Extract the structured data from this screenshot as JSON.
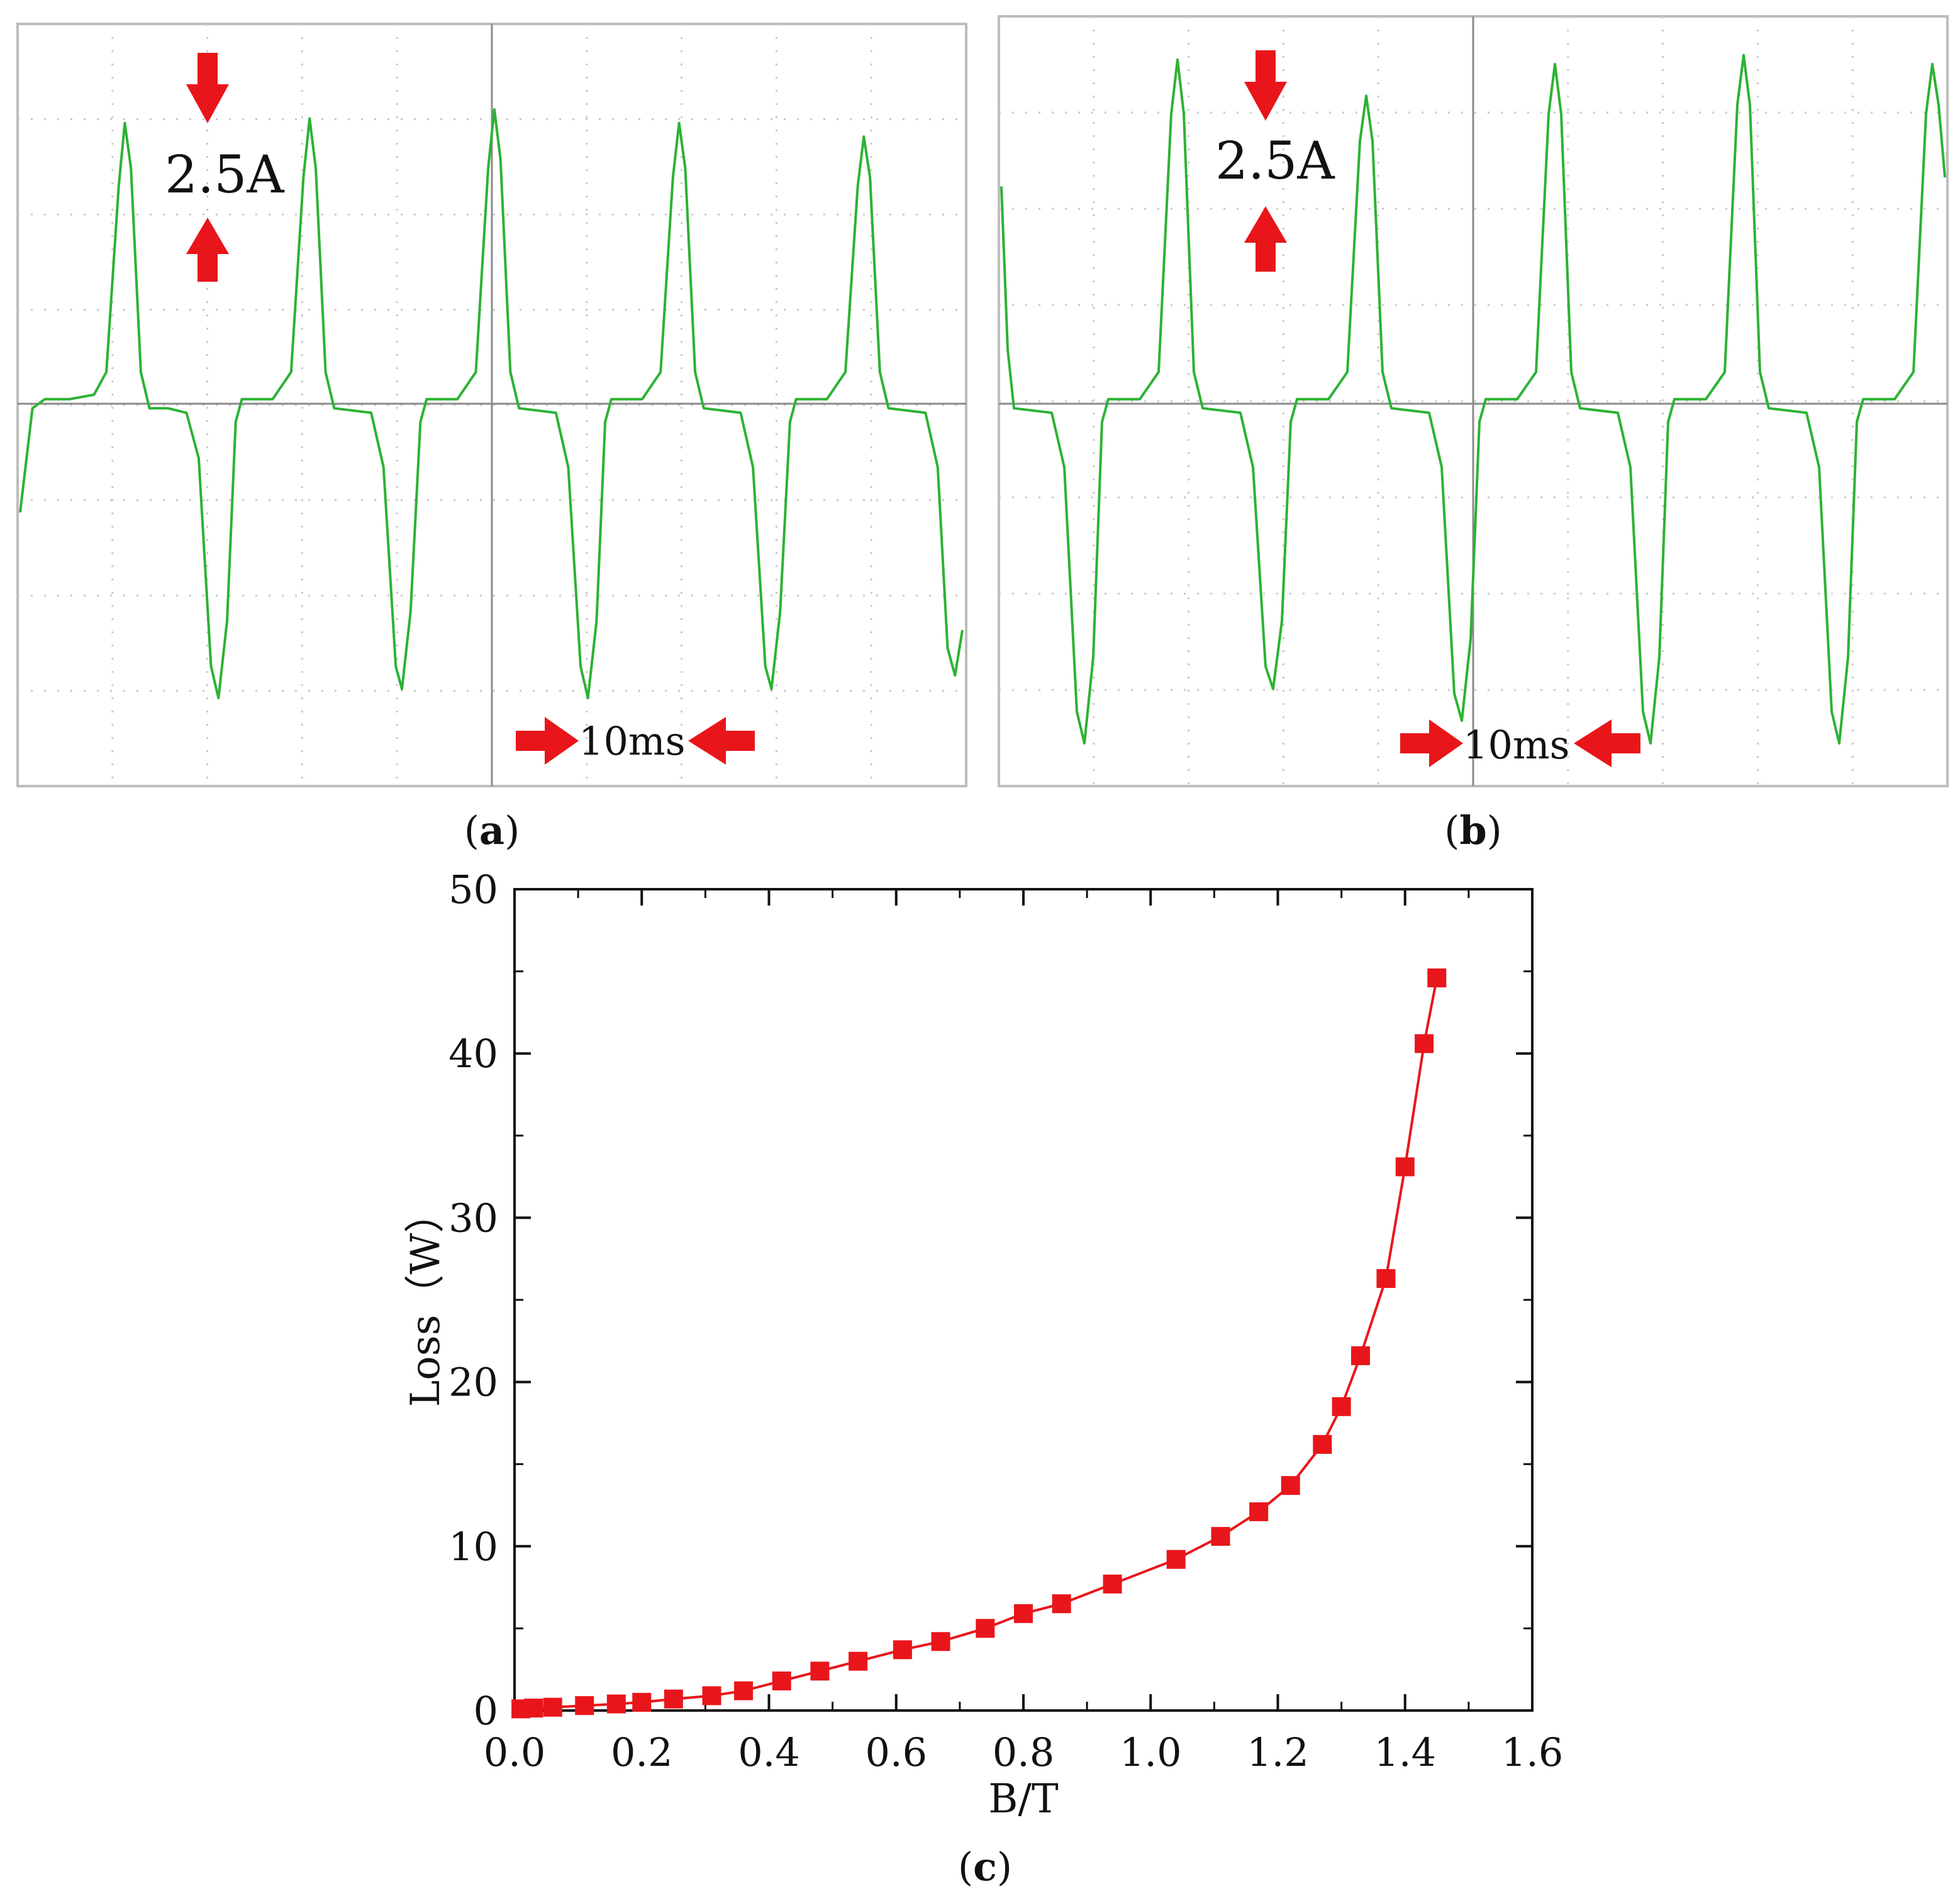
{
  "panels": {
    "a": {
      "label_open": "(",
      "label_letter": "a",
      "label_close": ")",
      "amplitude_label": "2.5A",
      "time_label": "10ms"
    },
    "b": {
      "label_open": "(",
      "label_letter": "b",
      "label_close": ")",
      "amplitude_label": "2.5A",
      "time_label": "10ms"
    },
    "c": {
      "label_open": "(",
      "label_letter": "c",
      "label_close": ")"
    }
  },
  "colors": {
    "trace": "#2cb233",
    "grid": "#c9c9c9",
    "axis": "#8a8a8a",
    "marker": "#e8161b",
    "arrow": "#e8161b",
    "frame": "#bdbdbd"
  },
  "chart_data": [
    {
      "type": "line",
      "description_panel": "a",
      "series": [
        {
          "values": [
            [
              0.0,
              -1.2
            ],
            [
              1.0,
              -0.05
            ],
            [
              2.0,
              0.05
            ],
            [
              4.0,
              0.05
            ],
            [
              6.0,
              0.1
            ],
            [
              7.0,
              0.35
            ],
            [
              8.0,
              2.4
            ],
            [
              8.5,
              3.1
            ],
            [
              9.0,
              2.6
            ],
            [
              9.8,
              0.35
            ],
            [
              10.5,
              -0.05
            ],
            [
              12.0,
              -0.05
            ],
            [
              13.5,
              -0.1
            ],
            [
              14.5,
              -0.6
            ],
            [
              15.5,
              -2.9
            ],
            [
              16.1,
              -3.25
            ],
            [
              16.8,
              -2.4
            ],
            [
              17.5,
              -0.2
            ],
            [
              18.0,
              0.05
            ],
            [
              20.5,
              0.05
            ],
            [
              22.0,
              0.35
            ],
            [
              23.0,
              2.5
            ],
            [
              23.5,
              3.15
            ],
            [
              24.0,
              2.6
            ],
            [
              24.8,
              0.35
            ],
            [
              25.5,
              -0.05
            ],
            [
              28.5,
              -0.1
            ],
            [
              29.5,
              -0.7
            ],
            [
              30.5,
              -2.9
            ],
            [
              31.0,
              -3.15
            ],
            [
              31.7,
              -2.3
            ],
            [
              32.5,
              -0.2
            ],
            [
              33.0,
              0.05
            ],
            [
              35.5,
              0.05
            ],
            [
              37.0,
              0.35
            ],
            [
              38.0,
              2.6
            ],
            [
              38.5,
              3.25
            ],
            [
              39.0,
              2.7
            ],
            [
              39.8,
              0.35
            ],
            [
              40.5,
              -0.05
            ],
            [
              43.5,
              -0.1
            ],
            [
              44.5,
              -0.7
            ],
            [
              45.5,
              -2.9
            ],
            [
              46.1,
              -3.25
            ],
            [
              46.8,
              -2.4
            ],
            [
              47.5,
              -0.2
            ],
            [
              48.0,
              0.05
            ],
            [
              50.5,
              0.05
            ],
            [
              52.0,
              0.35
            ],
            [
              53.0,
              2.5
            ],
            [
              53.5,
              3.1
            ],
            [
              54.0,
              2.6
            ],
            [
              54.8,
              0.35
            ],
            [
              55.5,
              -0.05
            ],
            [
              58.5,
              -0.1
            ],
            [
              59.5,
              -0.7
            ],
            [
              60.5,
              -2.9
            ],
            [
              61.0,
              -3.15
            ],
            [
              61.7,
              -2.3
            ],
            [
              62.5,
              -0.2
            ],
            [
              63.0,
              0.05
            ],
            [
              65.5,
              0.05
            ],
            [
              67.0,
              0.35
            ],
            [
              68.0,
              2.4
            ],
            [
              68.5,
              2.95
            ],
            [
              69.0,
              2.5
            ],
            [
              69.8,
              0.35
            ],
            [
              70.5,
              -0.05
            ],
            [
              73.5,
              -0.1
            ],
            [
              74.5,
              -0.7
            ],
            [
              75.3,
              -2.7
            ],
            [
              75.9,
              -3.0
            ],
            [
              76.5,
              -2.5
            ]
          ]
        }
      ],
      "xlim": [
        0,
        76.5
      ],
      "ylim": [
        -4.2,
        4.2
      ],
      "grid": true
    },
    {
      "type": "line",
      "description_panel": "b",
      "series": [
        {
          "values": [
            [
              0.0,
              2.4
            ],
            [
              0.5,
              0.6
            ],
            [
              1.0,
              -0.05
            ],
            [
              4.0,
              -0.1
            ],
            [
              5.0,
              -0.7
            ],
            [
              6.0,
              -3.4
            ],
            [
              6.6,
              -3.75
            ],
            [
              7.3,
              -2.8
            ],
            [
              8.0,
              -0.2
            ],
            [
              8.5,
              0.05
            ],
            [
              11.0,
              0.05
            ],
            [
              12.5,
              0.35
            ],
            [
              13.5,
              3.2
            ],
            [
              14.0,
              3.8
            ],
            [
              14.5,
              3.2
            ],
            [
              15.3,
              0.35
            ],
            [
              16.0,
              -0.05
            ],
            [
              19.0,
              -0.1
            ],
            [
              20.0,
              -0.7
            ],
            [
              21.0,
              -2.9
            ],
            [
              21.6,
              -3.15
            ],
            [
              22.3,
              -2.4
            ],
            [
              23.0,
              -0.2
            ],
            [
              23.5,
              0.05
            ],
            [
              26.0,
              0.05
            ],
            [
              27.5,
              0.35
            ],
            [
              28.5,
              2.9
            ],
            [
              29.0,
              3.4
            ],
            [
              29.5,
              2.9
            ],
            [
              30.3,
              0.35
            ],
            [
              31.0,
              -0.05
            ],
            [
              34.0,
              -0.1
            ],
            [
              35.0,
              -0.7
            ],
            [
              36.0,
              -3.2
            ],
            [
              36.6,
              -3.5
            ],
            [
              37.3,
              -2.6
            ],
            [
              38.0,
              -0.2
            ],
            [
              38.5,
              0.05
            ],
            [
              41.0,
              0.05
            ],
            [
              42.5,
              0.35
            ],
            [
              43.5,
              3.2
            ],
            [
              44.0,
              3.75
            ],
            [
              44.5,
              3.2
            ],
            [
              45.3,
              0.35
            ],
            [
              46.0,
              -0.05
            ],
            [
              49.0,
              -0.1
            ],
            [
              50.0,
              -0.7
            ],
            [
              51.0,
              -3.4
            ],
            [
              51.6,
              -3.75
            ],
            [
              52.3,
              -2.8
            ],
            [
              53.0,
              -0.2
            ],
            [
              53.5,
              0.05
            ],
            [
              56.0,
              0.05
            ],
            [
              57.5,
              0.35
            ],
            [
              58.5,
              3.3
            ],
            [
              59.0,
              3.85
            ],
            [
              59.5,
              3.3
            ],
            [
              60.3,
              0.35
            ],
            [
              61.0,
              -0.05
            ],
            [
              64.0,
              -0.1
            ],
            [
              65.0,
              -0.7
            ],
            [
              66.0,
              -3.4
            ],
            [
              66.6,
              -3.75
            ],
            [
              67.3,
              -2.8
            ],
            [
              68.0,
              -0.2
            ],
            [
              68.5,
              0.05
            ],
            [
              71.0,
              0.05
            ],
            [
              72.5,
              0.35
            ],
            [
              73.5,
              3.2
            ],
            [
              74.0,
              3.75
            ],
            [
              74.5,
              3.3
            ],
            [
              75.0,
              2.5
            ]
          ]
        }
      ],
      "xlim": [
        0,
        75.0
      ],
      "ylim": [
        -4.2,
        4.2
      ],
      "grid": true
    },
    {
      "type": "line",
      "description_panel": "c",
      "xlabel": "B/T",
      "ylabel": "Loss（W）",
      "xlim": [
        0.0,
        1.6
      ],
      "ylim": [
        0,
        50
      ],
      "xticks": [
        0.0,
        0.2,
        0.4,
        0.6,
        0.8,
        1.0,
        1.2,
        1.4,
        1.6
      ],
      "xtick_labels": [
        "0.0",
        "0.2",
        "0.4",
        "0.6",
        "0.8",
        "1.0",
        "1.2",
        "1.4",
        "1.6"
      ],
      "yticks": [
        0,
        10,
        20,
        30,
        40,
        50
      ],
      "ytick_labels": [
        "0",
        "10",
        "20",
        "30",
        "40",
        "50"
      ],
      "grid": false,
      "series": [
        {
          "marker": "square",
          "x": [
            0.01,
            0.03,
            0.06,
            0.11,
            0.16,
            0.2,
            0.25,
            0.31,
            0.36,
            0.42,
            0.48,
            0.54,
            0.61,
            0.67,
            0.74,
            0.8,
            0.86,
            0.94,
            1.04,
            1.11,
            1.17,
            1.22,
            1.27,
            1.3,
            1.33,
            1.37,
            1.4,
            1.43,
            1.45
          ],
          "y": [
            0.1,
            0.15,
            0.2,
            0.3,
            0.4,
            0.5,
            0.7,
            0.9,
            1.2,
            1.8,
            2.4,
            3.0,
            3.7,
            4.2,
            5.0,
            5.9,
            6.5,
            7.7,
            9.2,
            10.6,
            12.1,
            13.7,
            16.2,
            18.5,
            21.6,
            26.3,
            33.1,
            40.6,
            44.6
          ]
        }
      ]
    }
  ]
}
